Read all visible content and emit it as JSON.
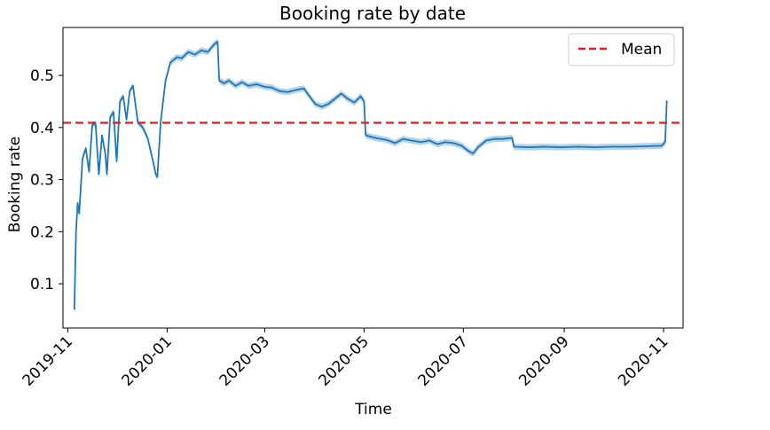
{
  "chart_data": {
    "type": "line",
    "title": "Booking rate by date",
    "xlabel": "Time",
    "ylabel": "Booking rate",
    "xlim": [
      "2019-10-29",
      "2020-11-13"
    ],
    "ylim": [
      0.015,
      0.592
    ],
    "x_ticks": [
      "2019-11",
      "2020-01",
      "2020-03",
      "2020-05",
      "2020-07",
      "2020-09",
      "2020-11"
    ],
    "y_ticks": [
      "0.1",
      "0.2",
      "0.3",
      "0.4",
      "0.5"
    ],
    "grid": false,
    "legend": {
      "position": "top-right",
      "entries": [
        "Mean"
      ]
    },
    "mean_line": {
      "label": "Mean",
      "value": 0.409,
      "color": "#e41a1c",
      "style": "dashed"
    },
    "series": [
      {
        "color": "#1f77b4",
        "band_color": "#a6cbe6",
        "points": [
          [
            "2019-11-05",
            0.05
          ],
          [
            "2019-11-06",
            0.2
          ],
          [
            "2019-11-07",
            0.255
          ],
          [
            "2019-11-08",
            0.235
          ],
          [
            "2019-11-10",
            0.34
          ],
          [
            "2019-11-12",
            0.36
          ],
          [
            "2019-11-14",
            0.315
          ],
          [
            "2019-11-16",
            0.405
          ],
          [
            "2019-11-18",
            0.408
          ],
          [
            "2019-11-20",
            0.31
          ],
          [
            "2019-11-22",
            0.385
          ],
          [
            "2019-11-24",
            0.35
          ],
          [
            "2019-11-25",
            0.31
          ],
          [
            "2019-11-27",
            0.42
          ],
          [
            "2019-11-29",
            0.43
          ],
          [
            "2019-12-01",
            0.335
          ],
          [
            "2019-12-03",
            0.45
          ],
          [
            "2019-12-05",
            0.46
          ],
          [
            "2019-12-07",
            0.415
          ],
          [
            "2019-12-09",
            0.47
          ],
          [
            "2019-12-11",
            0.48
          ],
          [
            "2019-12-14",
            0.41
          ],
          [
            "2019-12-17",
            0.4
          ],
          [
            "2019-12-20",
            0.38
          ],
          [
            "2019-12-23",
            0.34
          ],
          [
            "2019-12-25",
            0.31
          ],
          [
            "2019-12-26",
            0.305
          ],
          [
            "2019-12-28",
            0.41
          ],
          [
            "2019-12-31",
            0.49
          ],
          [
            "2020-01-03",
            0.525
          ],
          [
            "2020-01-07",
            0.535
          ],
          [
            "2020-01-10",
            0.533
          ],
          [
            "2020-01-14",
            0.545
          ],
          [
            "2020-01-18",
            0.54
          ],
          [
            "2020-01-22",
            0.548
          ],
          [
            "2020-01-26",
            0.545
          ],
          [
            "2020-01-30",
            0.56
          ],
          [
            "2020-02-01",
            0.565
          ],
          [
            "2020-02-02",
            0.49
          ],
          [
            "2020-02-05",
            0.485
          ],
          [
            "2020-02-08",
            0.49
          ],
          [
            "2020-02-12",
            0.48
          ],
          [
            "2020-02-16",
            0.487
          ],
          [
            "2020-02-20",
            0.48
          ],
          [
            "2020-02-25",
            0.483
          ],
          [
            "2020-03-01",
            0.478
          ],
          [
            "2020-03-05",
            0.477
          ],
          [
            "2020-03-10",
            0.47
          ],
          [
            "2020-03-15",
            0.468
          ],
          [
            "2020-03-20",
            0.472
          ],
          [
            "2020-03-25",
            0.475
          ],
          [
            "2020-03-28",
            0.462
          ],
          [
            "2020-04-01",
            0.445
          ],
          [
            "2020-04-05",
            0.44
          ],
          [
            "2020-04-09",
            0.445
          ],
          [
            "2020-04-13",
            0.455
          ],
          [
            "2020-04-17",
            0.465
          ],
          [
            "2020-04-21",
            0.455
          ],
          [
            "2020-04-25",
            0.448
          ],
          [
            "2020-04-29",
            0.46
          ],
          [
            "2020-05-01",
            0.45
          ],
          [
            "2020-05-02",
            0.385
          ],
          [
            "2020-05-08",
            0.38
          ],
          [
            "2020-05-15",
            0.376
          ],
          [
            "2020-05-20",
            0.37
          ],
          [
            "2020-05-25",
            0.378
          ],
          [
            "2020-05-30",
            0.375
          ],
          [
            "2020-06-05",
            0.372
          ],
          [
            "2020-06-10",
            0.375
          ],
          [
            "2020-06-15",
            0.368
          ],
          [
            "2020-06-20",
            0.372
          ],
          [
            "2020-06-25",
            0.37
          ],
          [
            "2020-06-30",
            0.365
          ],
          [
            "2020-07-04",
            0.355
          ],
          [
            "2020-07-07",
            0.35
          ],
          [
            "2020-07-10",
            0.362
          ],
          [
            "2020-07-15",
            0.375
          ],
          [
            "2020-07-20",
            0.378
          ],
          [
            "2020-07-25",
            0.378
          ],
          [
            "2020-07-31",
            0.38
          ],
          [
            "2020-08-01",
            0.363
          ],
          [
            "2020-08-10",
            0.362
          ],
          [
            "2020-08-20",
            0.363
          ],
          [
            "2020-08-30",
            0.362
          ],
          [
            "2020-09-10",
            0.363
          ],
          [
            "2020-09-20",
            0.362
          ],
          [
            "2020-09-30",
            0.363
          ],
          [
            "2020-10-10",
            0.363
          ],
          [
            "2020-10-20",
            0.364
          ],
          [
            "2020-10-31",
            0.365
          ],
          [
            "2020-11-02",
            0.372
          ],
          [
            "2020-11-03",
            0.452
          ]
        ]
      }
    ]
  }
}
